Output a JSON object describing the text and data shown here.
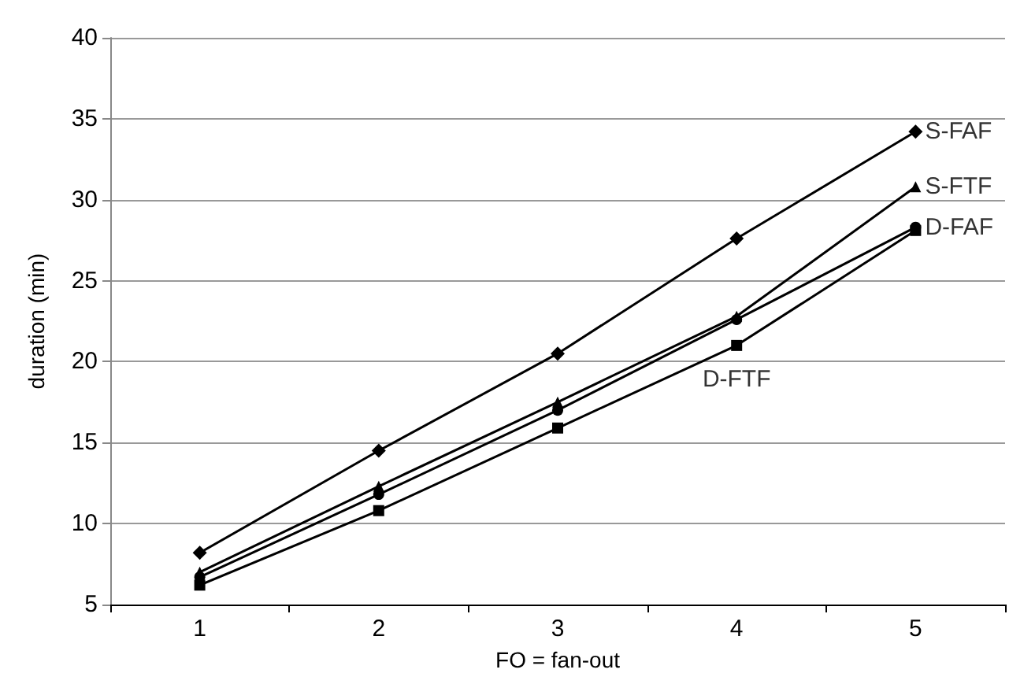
{
  "chart_data": {
    "type": "line",
    "xlabel": "FO = fan-out",
    "ylabel": "duration (min)",
    "categories": [
      "1",
      "2",
      "3",
      "4",
      "5"
    ],
    "ylim": [
      5,
      40
    ],
    "yticks": [
      5,
      10,
      15,
      20,
      25,
      30,
      35,
      40
    ],
    "grid": "y",
    "line_style": "solid",
    "series": [
      {
        "color": "#000000",
        "marker": "diamond",
        "values": [
          8.2,
          14.5,
          20.5,
          27.6,
          34.2
        ]
      },
      {
        "color": "#000000",
        "marker": "triangle",
        "values": [
          7.0,
          12.3,
          17.5,
          22.8,
          30.8
        ]
      },
      {
        "color": "#000000",
        "marker": "circle",
        "values": [
          6.7,
          11.8,
          17.0,
          22.6,
          28.3
        ]
      },
      {
        "color": "#000000",
        "marker": "square",
        "values": [
          6.2,
          10.8,
          15.9,
          21.0,
          28.1
        ]
      }
    ],
    "annotations": [
      {
        "text": "S-FAF",
        "x": "5",
        "y": 34.2
      },
      {
        "text": "S-FTF",
        "x": "5",
        "y": 30.8
      },
      {
        "text": "D-FAF",
        "x": "5",
        "y": 28.3
      },
      {
        "text": "D-FTF",
        "x": "4",
        "y": 21.0
      }
    ]
  }
}
